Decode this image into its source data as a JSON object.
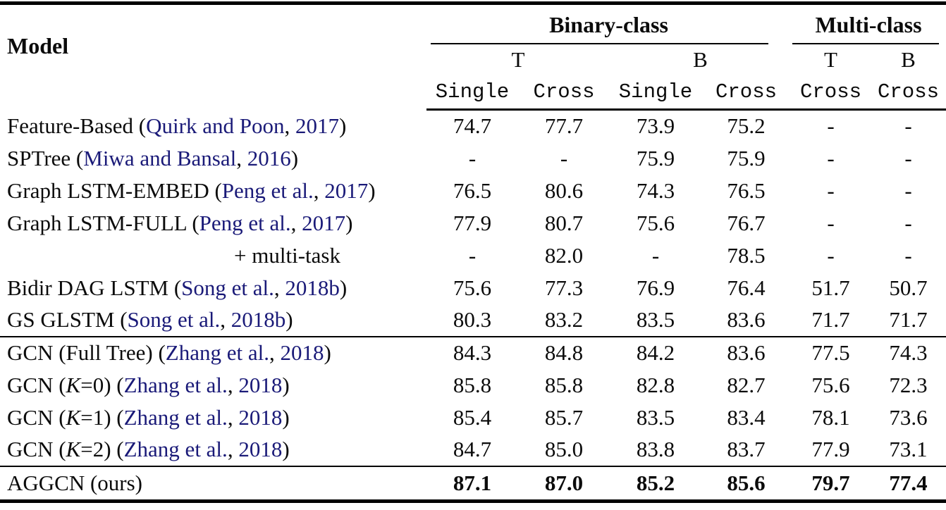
{
  "table": {
    "link_color": "#1A1A78",
    "header": {
      "model_label": "Model",
      "groups": [
        {
          "label": "Binary-class",
          "span": 4
        },
        {
          "label": "Multi-class",
          "span": 2
        }
      ],
      "subgroups": [
        "T",
        "B",
        "T",
        "B"
      ],
      "columns": [
        "Single",
        "Cross",
        "Single",
        "Cross",
        "Cross",
        "Cross"
      ]
    },
    "sections": [
      {
        "rows": [
          {
            "model": [
              {
                "t": "Feature-Based ("
              },
              {
                "t": "Quirk and Poon",
                "cite": true
              },
              {
                "t": ", "
              },
              {
                "t": "2017",
                "cite": true
              },
              {
                "t": ")"
              }
            ],
            "values": [
              "74.7",
              "77.7",
              "73.9",
              "75.2",
              "-",
              "-"
            ]
          },
          {
            "model": [
              {
                "t": "SPTree ("
              },
              {
                "t": "Miwa and Bansal",
                "cite": true
              },
              {
                "t": ", "
              },
              {
                "t": "2016",
                "cite": true
              },
              {
                "t": ")"
              }
            ],
            "values": [
              "-",
              "-",
              "75.9",
              "75.9",
              "-",
              "-"
            ]
          },
          {
            "model": [
              {
                "t": "Graph LSTM-EMBED ("
              },
              {
                "t": "Peng et al.",
                "cite": true
              },
              {
                "t": ", "
              },
              {
                "t": "2017",
                "cite": true
              },
              {
                "t": ")"
              }
            ],
            "values": [
              "76.5",
              "80.6",
              "74.3",
              "76.5",
              "-",
              "-"
            ]
          },
          {
            "model": [
              {
                "t": "Graph LSTM-FULL ("
              },
              {
                "t": "Peng et al.",
                "cite": true
              },
              {
                "t": ", "
              },
              {
                "t": "2017",
                "cite": true
              },
              {
                "t": ")"
              }
            ],
            "values": [
              "77.9",
              "80.7",
              "75.6",
              "76.7",
              "-",
              "-"
            ]
          },
          {
            "model": [
              {
                "t": "+ multi-task"
              }
            ],
            "indent": true,
            "values": [
              "-",
              "82.0",
              "-",
              "78.5",
              "-",
              "-"
            ]
          },
          {
            "model": [
              {
                "t": "Bidir DAG LSTM ("
              },
              {
                "t": "Song et al.",
                "cite": true
              },
              {
                "t": ", "
              },
              {
                "t": "2018b",
                "cite": true
              },
              {
                "t": ")"
              }
            ],
            "values": [
              "75.6",
              "77.3",
              "76.9",
              "76.4",
              "51.7",
              "50.7"
            ]
          },
          {
            "model": [
              {
                "t": "GS GLSTM ("
              },
              {
                "t": "Song et al.",
                "cite": true
              },
              {
                "t": ", "
              },
              {
                "t": "2018b",
                "cite": true
              },
              {
                "t": ")"
              }
            ],
            "values": [
              "80.3",
              "83.2",
              "83.5",
              "83.6",
              "71.7",
              "71.7"
            ]
          }
        ]
      },
      {
        "rows": [
          {
            "model": [
              {
                "t": "GCN (Full Tree) ("
              },
              {
                "t": "Zhang et al.",
                "cite": true
              },
              {
                "t": ", "
              },
              {
                "t": "2018",
                "cite": true
              },
              {
                "t": ")"
              }
            ],
            "values": [
              "84.3",
              "84.8",
              "84.2",
              "83.6",
              "77.5",
              "74.3"
            ]
          },
          {
            "model": [
              {
                "t": "GCN ("
              },
              {
                "t": "K",
                "italic": true
              },
              {
                "t": "=0) ("
              },
              {
                "t": "Zhang et al.",
                "cite": true
              },
              {
                "t": ", "
              },
              {
                "t": "2018",
                "cite": true
              },
              {
                "t": ")"
              }
            ],
            "values": [
              "85.8",
              "85.8",
              "82.8",
              "82.7",
              "75.6",
              "72.3"
            ]
          },
          {
            "model": [
              {
                "t": "GCN ("
              },
              {
                "t": "K",
                "italic": true
              },
              {
                "t": "=1) ("
              },
              {
                "t": "Zhang et al.",
                "cite": true
              },
              {
                "t": ", "
              },
              {
                "t": "2018",
                "cite": true
              },
              {
                "t": ")"
              }
            ],
            "values": [
              "85.4",
              "85.7",
              "83.5",
              "83.4",
              "78.1",
              "73.6"
            ]
          },
          {
            "model": [
              {
                "t": "GCN ("
              },
              {
                "t": "K",
                "italic": true
              },
              {
                "t": "=2) ("
              },
              {
                "t": "Zhang et al.",
                "cite": true
              },
              {
                "t": ", "
              },
              {
                "t": "2018",
                "cite": true
              },
              {
                "t": ")"
              }
            ],
            "values": [
              "84.7",
              "85.0",
              "83.8",
              "83.7",
              "77.9",
              "73.1"
            ]
          }
        ]
      },
      {
        "rows": [
          {
            "model": [
              {
                "t": "AGGCN (ours)"
              }
            ],
            "bold_values": true,
            "values": [
              "87.1",
              "87.0",
              "85.2",
              "85.6",
              "79.7",
              "77.4"
            ]
          }
        ]
      }
    ]
  }
}
